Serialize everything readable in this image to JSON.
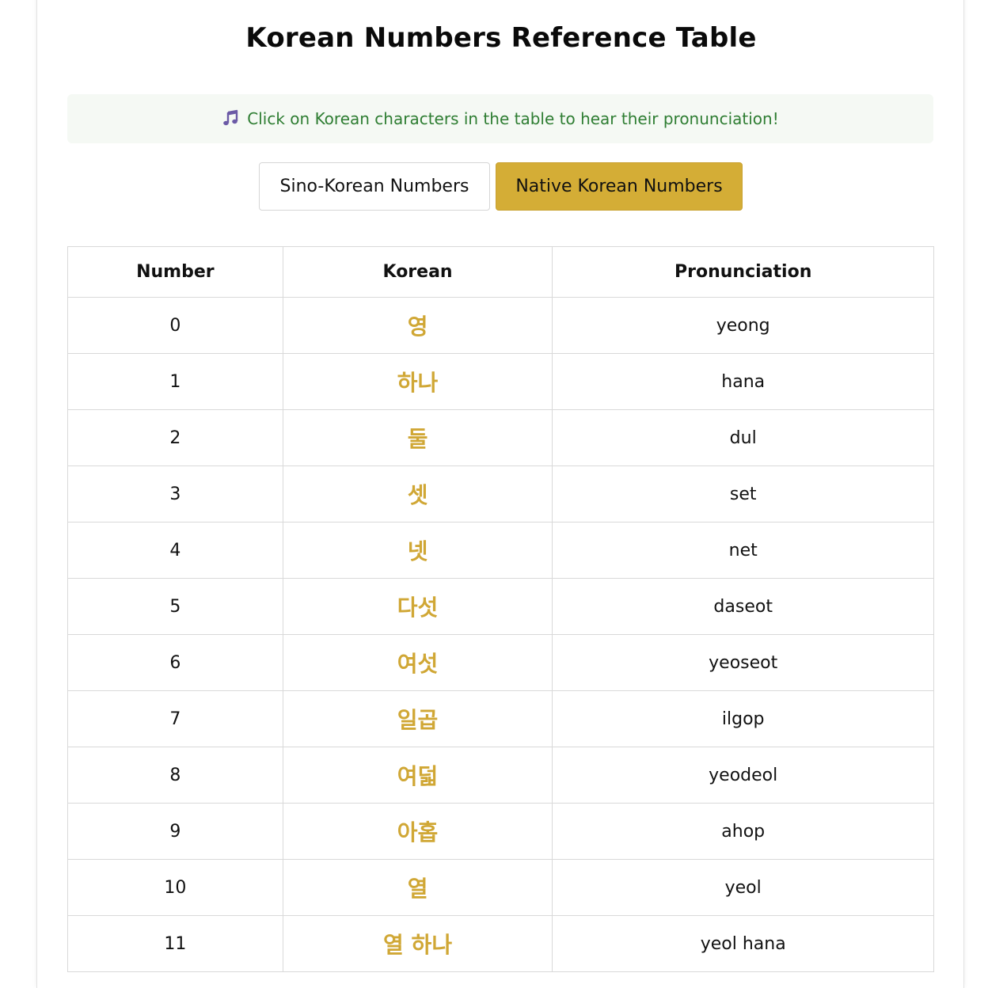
{
  "page_title": "Korean Numbers Reference Table",
  "notice": {
    "icon": "music-note-icon",
    "text": "Click on Korean characters in the table to hear their pronunciation!"
  },
  "tabs": [
    {
      "label": "Sino-Korean Numbers",
      "active": false
    },
    {
      "label": "Native Korean Numbers",
      "active": true
    }
  ],
  "colors": {
    "accent": "#d4ad36",
    "korean_text": "#d0a735",
    "notice_text": "#2e7d32",
    "notice_bg": "#f5f9f4"
  },
  "table": {
    "headers": [
      "Number",
      "Korean",
      "Pronunciation"
    ],
    "rows": [
      {
        "number": "0",
        "korean": "영",
        "pronunciation": "yeong"
      },
      {
        "number": "1",
        "korean": "하나",
        "pronunciation": "hana"
      },
      {
        "number": "2",
        "korean": "둘",
        "pronunciation": "dul"
      },
      {
        "number": "3",
        "korean": "셋",
        "pronunciation": "set"
      },
      {
        "number": "4",
        "korean": "넷",
        "pronunciation": "net"
      },
      {
        "number": "5",
        "korean": "다섯",
        "pronunciation": "daseot"
      },
      {
        "number": "6",
        "korean": "여섯",
        "pronunciation": "yeoseot"
      },
      {
        "number": "7",
        "korean": "일곱",
        "pronunciation": "ilgop"
      },
      {
        "number": "8",
        "korean": "여덟",
        "pronunciation": "yeodeol"
      },
      {
        "number": "9",
        "korean": "아홉",
        "pronunciation": "ahop"
      },
      {
        "number": "10",
        "korean": "열",
        "pronunciation": "yeol"
      },
      {
        "number": "11",
        "korean": "열 하나",
        "pronunciation": "yeol hana"
      }
    ]
  }
}
